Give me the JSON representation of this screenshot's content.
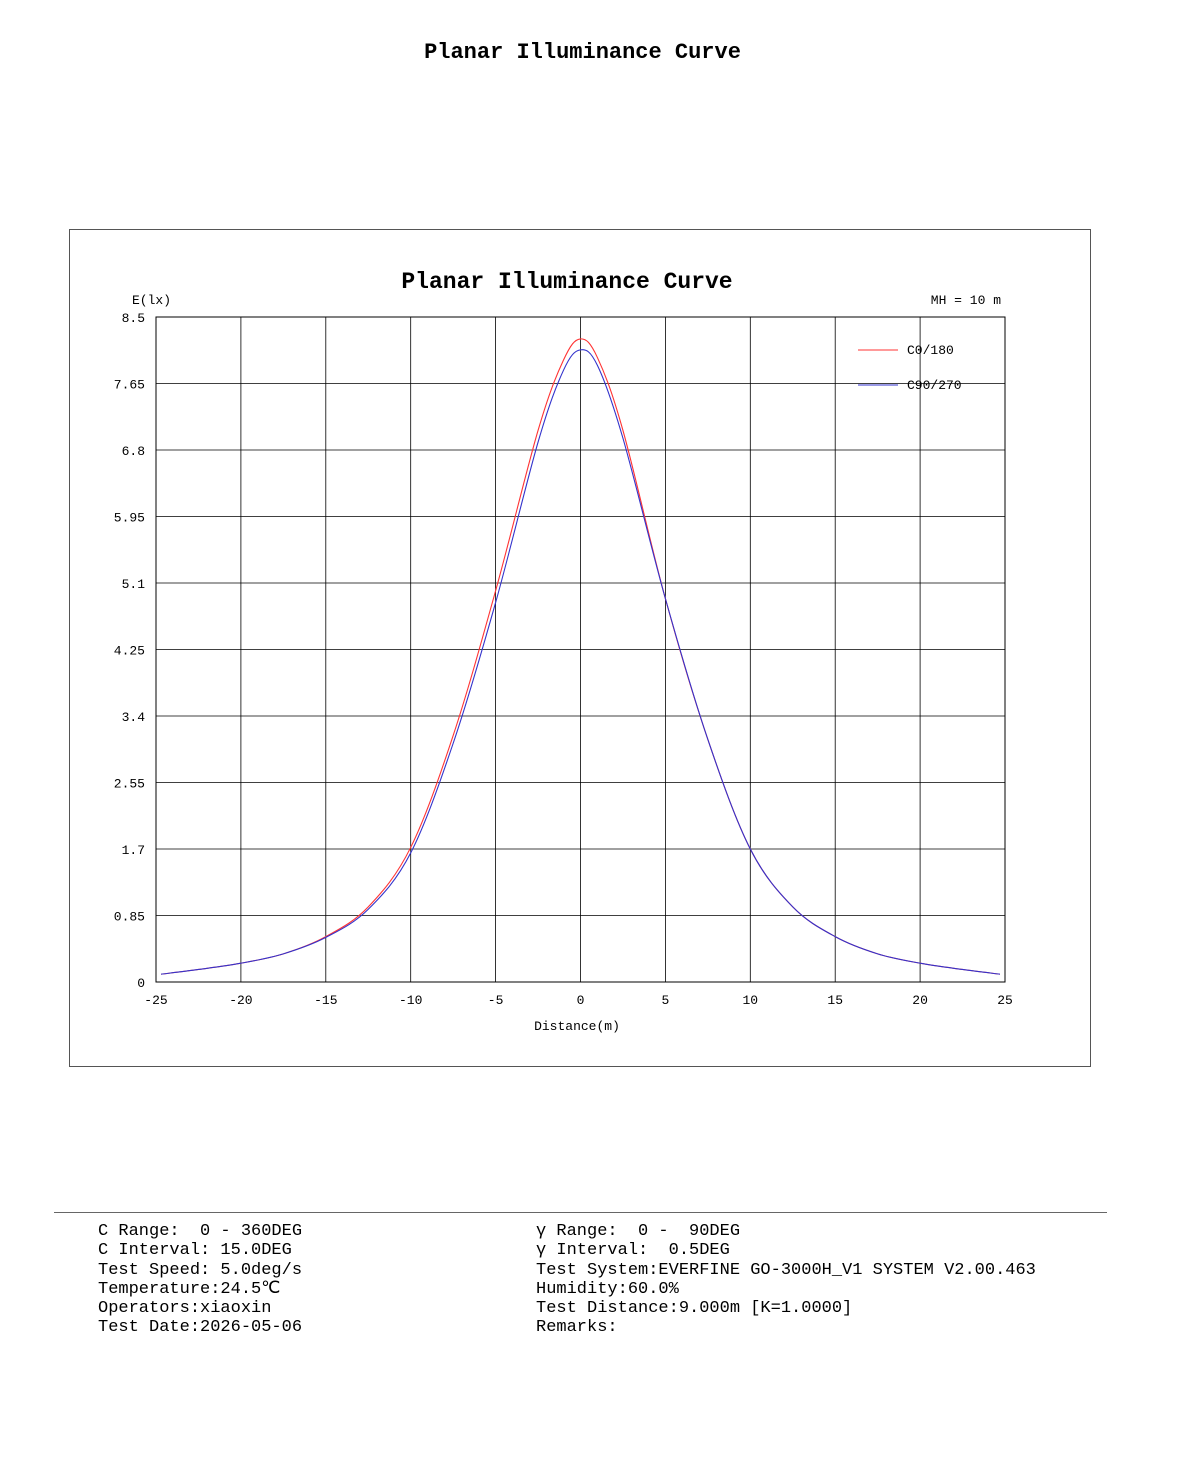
{
  "page_title": "Planar Illuminance Curve",
  "chart_data": {
    "type": "line",
    "title": "Planar Illuminance Curve",
    "xlabel": "Distance(m)",
    "ylabel": "E(lx)",
    "annotation": "MH = 10 m",
    "xlim": [
      -25,
      25
    ],
    "ylim": [
      0,
      8.5
    ],
    "x_ticks": [
      "-25",
      "-20",
      "-15",
      "-10",
      "-5",
      "0",
      "5",
      "10",
      "15",
      "20",
      "25"
    ],
    "y_ticks": [
      "0",
      "0.85",
      "1.7",
      "2.55",
      "3.4",
      "4.25",
      "5.1",
      "5.95",
      "6.8",
      "7.65",
      "8.5"
    ],
    "grid": true,
    "legend_position": "top-right",
    "x": [
      -24.7,
      -22.5,
      -20,
      -17.5,
      -15,
      -12.5,
      -10,
      -7.5,
      -5,
      -2.5,
      -1,
      0,
      1,
      2.5,
      5,
      7.5,
      10,
      12.5,
      15,
      17.5,
      20,
      22.5,
      24.7
    ],
    "series": [
      {
        "name": "C0/180",
        "color": "#ff3333",
        "values": [
          0.1,
          0.16,
          0.24,
          0.36,
          0.58,
          0.96,
          1.72,
          3.15,
          5.0,
          7.05,
          7.95,
          8.22,
          7.98,
          7.05,
          4.9,
          3.1,
          1.7,
          0.96,
          0.58,
          0.36,
          0.24,
          0.16,
          0.1
        ]
      },
      {
        "name": "C90/270",
        "color": "#3333cc",
        "values": [
          0.1,
          0.16,
          0.24,
          0.36,
          0.57,
          0.93,
          1.65,
          3.05,
          4.85,
          6.9,
          7.82,
          8.08,
          7.88,
          6.95,
          4.9,
          3.1,
          1.7,
          0.96,
          0.58,
          0.36,
          0.24,
          0.16,
          0.1
        ]
      }
    ]
  },
  "info": {
    "left": [
      "C Range:  0 - 360DEG",
      "C Interval: 15.0DEG",
      "Test Speed: 5.0deg/s",
      "Temperature:24.5℃",
      "Operators:xiaoxin",
      "Test Date:2026-05-06"
    ],
    "right": [
      "γ Range:  0 -  90DEG",
      "γ Interval:  0.5DEG",
      "Test System:EVERFINE GO-3000H_V1 SYSTEM V2.00.463",
      "Humidity:60.0%",
      "Test Distance:9.000m [K=1.0000]",
      "Remarks:"
    ]
  }
}
